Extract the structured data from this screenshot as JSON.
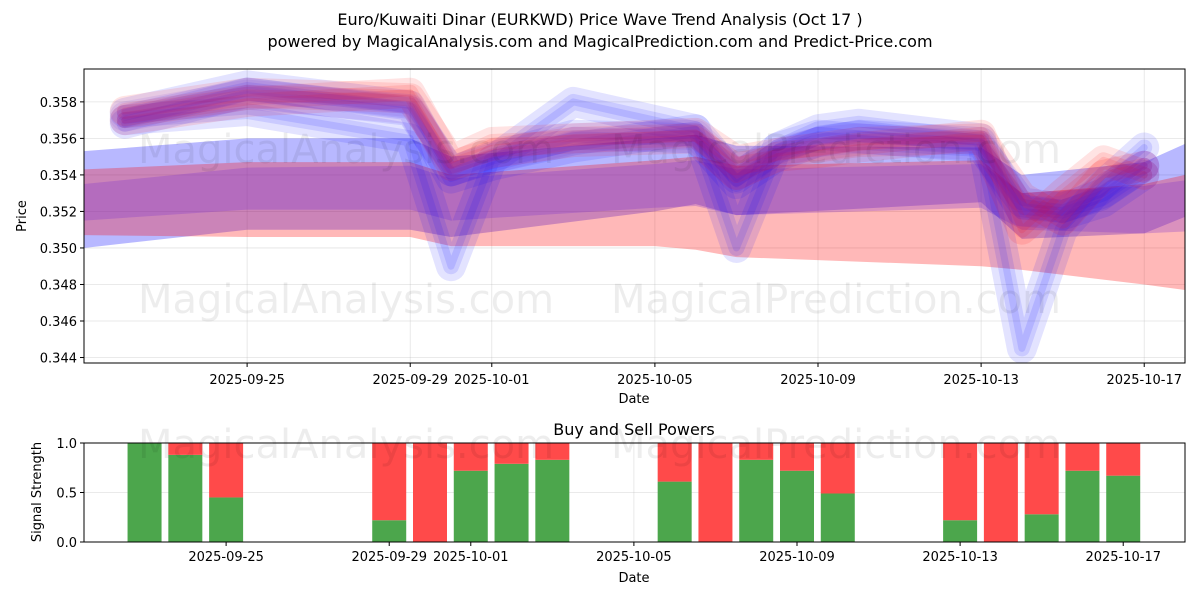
{
  "header": {
    "title": "Euro/Kuwaiti Dinar (EURKWD) Price Wave Trend Analysis (Oct 17 )",
    "subtitle": "powered by MagicalAnalysis.com and MagicalPrediction.com and Predict-Price.com"
  },
  "watermarks": [
    "MagicalAnalysis.com",
    "MagicalPrediction.com"
  ],
  "colors": {
    "blue": "#0000ff",
    "red": "#ff0000",
    "purple": "#7a2fcf",
    "buy": "#4ca64c",
    "sell": "#ff4a4a"
  },
  "chart_data": [
    {
      "type": "area",
      "title": "",
      "xlabel": "Date",
      "ylabel": "Price",
      "xlim": [
        "2025-09-21",
        "2025-10-18"
      ],
      "ylim": [
        0.3437,
        0.3598
      ],
      "xticks": [
        "2025-09-25",
        "2025-09-29",
        "2025-10-01",
        "2025-10-05",
        "2025-10-09",
        "2025-10-13",
        "2025-10-17"
      ],
      "yticks": [
        0.344,
        0.346,
        0.348,
        0.35,
        0.352,
        0.354,
        0.356,
        0.358
      ],
      "grid": true,
      "dates": [
        "2025-09-22",
        "2025-09-25",
        "2025-09-29",
        "2025-09-30",
        "2025-10-01",
        "2025-10-03",
        "2025-10-06",
        "2025-10-07",
        "2025-10-08",
        "2025-10-09",
        "2025-10-10",
        "2025-10-13",
        "2025-10-14",
        "2025-10-15",
        "2025-10-16",
        "2025-10-17"
      ],
      "series": [
        {
          "color": "blue",
          "values": [
            0.3574,
            0.3589,
            0.3578,
            0.3538,
            0.3545,
            0.3555,
            0.3565,
            0.3538,
            0.3555,
            0.3562,
            0.356,
            0.3555,
            0.3525,
            0.3522,
            0.353,
            0.3545
          ]
        },
        {
          "color": "blue",
          "values": [
            0.3568,
            0.3585,
            0.3575,
            0.3542,
            0.355,
            0.3562,
            0.356,
            0.3535,
            0.355,
            0.3558,
            0.3562,
            0.3558,
            0.352,
            0.3518,
            0.3525,
            0.354
          ]
        },
        {
          "color": "blue",
          "values": [
            0.357,
            0.3575,
            0.356,
            0.349,
            0.3548,
            0.358,
            0.3565,
            0.35,
            0.3555,
            0.3565,
            0.3568,
            0.356,
            0.3445,
            0.351,
            0.3535,
            0.3555
          ]
        },
        {
          "color": "red",
          "values": [
            0.3575,
            0.3585,
            0.3582,
            0.3548,
            0.3558,
            0.356,
            0.3563,
            0.3548,
            0.3552,
            0.3555,
            0.3558,
            0.356,
            0.3528,
            0.3515,
            0.354,
            0.3545
          ]
        },
        {
          "color": "red",
          "values": [
            0.357,
            0.358,
            0.3585,
            0.3545,
            0.3552,
            0.3558,
            0.356,
            0.354,
            0.355,
            0.3552,
            0.3555,
            0.3562,
            0.351,
            0.353,
            0.3548,
            0.354
          ]
        },
        {
          "color": "purple",
          "values": [
            0.3572,
            0.3584,
            0.3576,
            0.3542,
            0.3549,
            0.356,
            0.3562,
            0.354,
            0.3552,
            0.3558,
            0.356,
            0.3556,
            0.352,
            0.352,
            0.3532,
            0.3545
          ]
        }
      ],
      "bands": [
        {
          "color": "blue",
          "dates": [
            "2025-09-21",
            "2025-09-25",
            "2025-09-29",
            "2025-09-30",
            "2025-10-05",
            "2025-10-06",
            "2025-10-07",
            "2025-10-13",
            "2025-10-14",
            "2025-10-17",
            "2025-10-18"
          ],
          "upper": [
            0.3553,
            0.356,
            0.356,
            0.355,
            0.356,
            0.3562,
            0.3556,
            0.3555,
            0.354,
            0.3547,
            0.3557
          ],
          "lower": [
            0.35,
            0.351,
            0.351,
            0.3506,
            0.352,
            0.3524,
            0.3518,
            0.3525,
            0.3505,
            0.3508,
            0.3517
          ]
        },
        {
          "color": "red",
          "dates": [
            "2025-09-21",
            "2025-09-25",
            "2025-09-29",
            "2025-09-30",
            "2025-10-05",
            "2025-10-06",
            "2025-10-07",
            "2025-10-13",
            "2025-10-14",
            "2025-10-17",
            "2025-10-18"
          ],
          "upper": [
            0.3543,
            0.3547,
            0.3547,
            0.354,
            0.3548,
            0.355,
            0.3545,
            0.3548,
            0.353,
            0.3535,
            0.354
          ],
          "lower": [
            0.3507,
            0.3506,
            0.3506,
            0.3501,
            0.3501,
            0.3499,
            0.3495,
            0.349,
            0.3488,
            0.348,
            0.3477
          ]
        },
        {
          "color": "purple",
          "dates": [
            "2025-09-21",
            "2025-09-25",
            "2025-09-29",
            "2025-09-30",
            "2025-10-05",
            "2025-10-06",
            "2025-10-07",
            "2025-10-13",
            "2025-10-14",
            "2025-10-17",
            "2025-10-18"
          ],
          "upper": [
            0.3535,
            0.3544,
            0.3545,
            0.3538,
            0.3546,
            0.3548,
            0.3543,
            0.3546,
            0.353,
            0.3534,
            0.3537
          ],
          "lower": [
            0.3515,
            0.3521,
            0.3521,
            0.3515,
            0.3522,
            0.3523,
            0.3518,
            0.3522,
            0.351,
            0.3508,
            0.3509
          ]
        }
      ]
    },
    {
      "type": "bar",
      "title": "Buy and Sell Powers",
      "xlabel": "Date",
      "ylabel": "Signal Strength",
      "xlim": [
        "2025-09-21",
        "2025-10-18"
      ],
      "ylim": [
        0,
        1
      ],
      "xticks": [
        "2025-09-25",
        "2025-09-29",
        "2025-10-01",
        "2025-10-05",
        "2025-10-09",
        "2025-10-13",
        "2025-10-17"
      ],
      "yticks": [
        "0.0",
        "0.5",
        "1.0"
      ],
      "grid": true,
      "dates": [
        "2025-09-23",
        "2025-09-24",
        "2025-09-25",
        "2025-09-29",
        "2025-09-30",
        "2025-10-01",
        "2025-10-02",
        "2025-10-03",
        "2025-10-06",
        "2025-10-07",
        "2025-10-08",
        "2025-10-09",
        "2025-10-10",
        "2025-10-13",
        "2025-10-14",
        "2025-10-15",
        "2025-10-16",
        "2025-10-17"
      ],
      "series": [
        {
          "name": "Buy",
          "values": [
            1.0,
            0.88,
            0.45,
            0.22,
            0.0,
            0.72,
            0.79,
            0.83,
            0.61,
            0.0,
            0.83,
            0.72,
            0.49,
            0.22,
            0.0,
            0.28,
            0.72,
            0.67
          ]
        },
        {
          "name": "Sell",
          "values": [
            0.0,
            0.12,
            0.55,
            0.78,
            1.0,
            0.28,
            0.21,
            0.17,
            0.39,
            1.0,
            0.17,
            0.28,
            0.51,
            0.78,
            1.0,
            0.72,
            0.28,
            0.33
          ]
        }
      ]
    }
  ]
}
